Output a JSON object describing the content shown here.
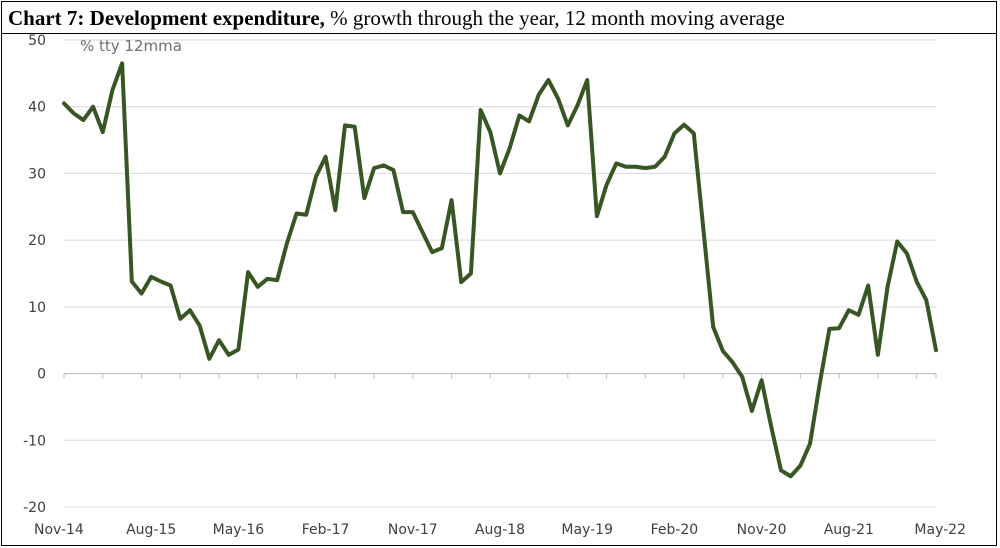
{
  "title": {
    "bold": "Chart 7: Development expenditure,",
    "rest": " % growth through the year, 12 month moving average"
  },
  "chart_data": {
    "type": "line",
    "unit_label": "% tty 12mma",
    "ylim": [
      -20,
      50
    ],
    "yticks": [
      50,
      40,
      30,
      20,
      10,
      0,
      -10,
      -20
    ],
    "xticks": [
      "Nov-14",
      "Aug-15",
      "May-16",
      "Feb-17",
      "Nov-17",
      "Aug-18",
      "May-19",
      "Feb-20",
      "Nov-20",
      "Aug-21",
      "May-22"
    ],
    "grid": true,
    "legend": "none",
    "line_color": "#375623",
    "series": [
      {
        "values": [
          40.5,
          39,
          38,
          40,
          36.2,
          42.5,
          46.5,
          13.8,
          12,
          14.5,
          13.8,
          13.2,
          8.2,
          9.5,
          7.2,
          2.2,
          5,
          2.8,
          3.6,
          15.2,
          13,
          14.2,
          14,
          19.5,
          24,
          23.8,
          29.5,
          32.5,
          24.5,
          37.2,
          37,
          26.3,
          30.8,
          31.2,
          30.5,
          24.2,
          24.2,
          21.2,
          18.2,
          18.8,
          26,
          13.7,
          15,
          39.5,
          36.2,
          30,
          33.8,
          38.7,
          37.8,
          41.8,
          44,
          41.2,
          37.2,
          40.2,
          44,
          23.6,
          28.3,
          31.5,
          31,
          31,
          30.8,
          31,
          32.5,
          36,
          37.3,
          36,
          21.5,
          7,
          3.4,
          1.7,
          -0.5,
          -5.6,
          -1,
          -8,
          -14.5,
          -15.4,
          -13.8,
          -10.5,
          -1.5,
          6.7,
          6.8,
          9.5,
          8.8,
          13.2,
          2.8,
          13,
          19.8,
          18,
          13.8,
          11,
          3.5
        ]
      }
    ]
  }
}
